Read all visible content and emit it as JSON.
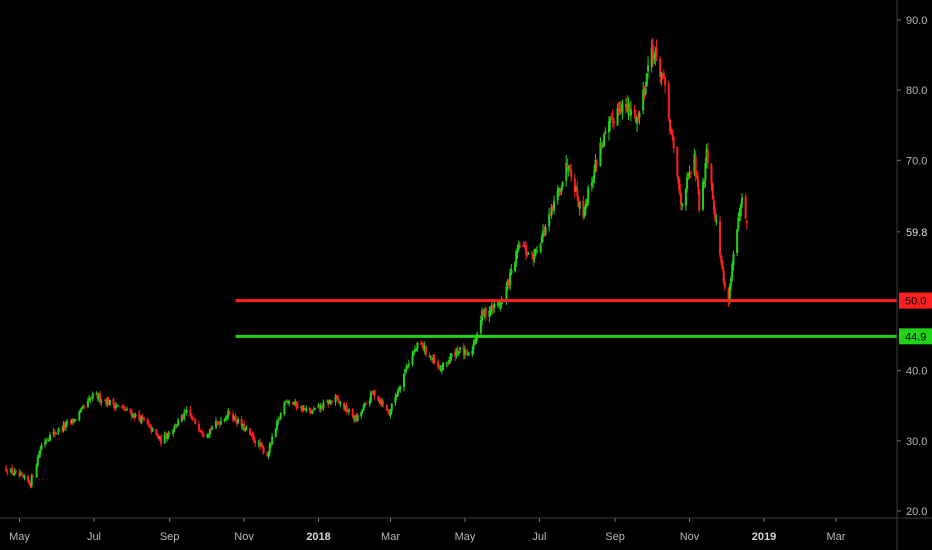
{
  "chart_data": {
    "type": "candlestick",
    "title": "",
    "xlabel": "",
    "ylabel": "",
    "colors": {
      "up": "#22d11a",
      "down": "#ff1f1f",
      "background": "#000000",
      "axis_text": "#b8b8b8"
    },
    "y_axis": {
      "ticks": [
        "90.0",
        "80.0",
        "70.0",
        "40.0",
        "30.0",
        "20.0"
      ],
      "ylim": [
        20,
        90
      ]
    },
    "x_axis": {
      "ticks": [
        "May",
        "Jul",
        "Sep",
        "Nov",
        "2018",
        "Mar",
        "May",
        "Jul",
        "Sep",
        "Nov",
        "2019",
        "Mar"
      ],
      "bold_ticks": [
        "2018",
        "2019"
      ],
      "range": [
        "2017-05",
        "2019-04"
      ]
    },
    "price_path": [
      [
        "2017-04-20",
        26
      ],
      [
        "2017-05-10",
        24
      ],
      [
        "2017-05-20",
        30
      ],
      [
        "2017-06-15",
        33
      ],
      [
        "2017-07-01",
        36.5
      ],
      [
        "2017-07-20",
        35
      ],
      [
        "2017-08-10",
        33
      ],
      [
        "2017-08-25",
        30
      ],
      [
        "2017-09-15",
        34
      ],
      [
        "2017-09-30",
        31
      ],
      [
        "2017-10-20",
        34
      ],
      [
        "2017-11-05",
        31
      ],
      [
        "2017-11-20",
        28
      ],
      [
        "2017-12-05",
        36
      ],
      [
        "2017-12-25",
        34
      ],
      [
        "2018-01-15",
        36
      ],
      [
        "2018-02-01",
        33
      ],
      [
        "2018-02-15",
        37
      ],
      [
        "2018-02-28",
        34
      ],
      [
        "2018-03-15",
        41
      ],
      [
        "2018-03-25",
        44
      ],
      [
        "2018-04-10",
        40
      ],
      [
        "2018-04-25",
        43
      ],
      [
        "2018-05-05",
        42
      ],
      [
        "2018-05-15",
        48
      ],
      [
        "2018-06-01",
        50
      ],
      [
        "2018-06-15",
        58
      ],
      [
        "2018-06-25",
        56
      ],
      [
        "2018-07-10",
        62
      ],
      [
        "2018-07-25",
        70
      ],
      [
        "2018-08-05",
        62
      ],
      [
        "2018-08-20",
        72
      ],
      [
        "2018-09-05",
        78
      ],
      [
        "2018-09-20",
        76
      ],
      [
        "2018-10-01",
        86
      ],
      [
        "2018-10-10",
        82
      ],
      [
        "2018-10-25",
        64
      ],
      [
        "2018-11-05",
        70
      ],
      [
        "2018-11-10",
        62
      ],
      [
        "2018-11-15",
        72
      ],
      [
        "2018-11-25",
        58
      ],
      [
        "2018-12-02",
        49
      ],
      [
        "2018-12-08",
        58
      ],
      [
        "2018-12-14",
        64
      ],
      [
        "2018-12-19",
        60
      ]
    ],
    "horizontal_levels": [
      {
        "value": 50.0,
        "label": "50.0",
        "color": "#ff1f1f",
        "start": "2017-10-25"
      },
      {
        "value": 44.9,
        "label": "44.9",
        "color": "#22d11a",
        "start": "2017-10-25"
      }
    ],
    "last_price": {
      "value": 59.8,
      "label": "59.8"
    }
  }
}
